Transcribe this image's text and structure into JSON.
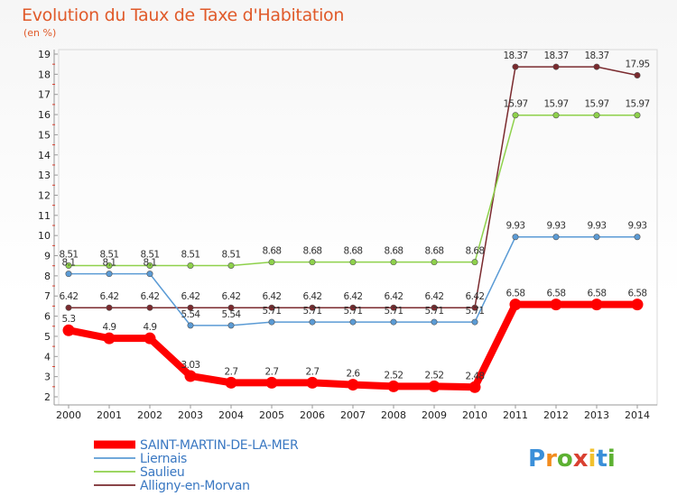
{
  "header": {
    "title": "Evolution du Taux de Taxe d'Habitation",
    "subtitle": "(en %)"
  },
  "logo": {
    "text": "Proxiti",
    "letters": [
      "P",
      "r",
      "o",
      "x",
      "i",
      "t",
      "i"
    ],
    "colors": [
      "#3a8fd9",
      "#f28c1e",
      "#5db132",
      "#d94030",
      "#f2c12e",
      "#3a8fd9",
      "#5db132"
    ]
  },
  "chart_data": {
    "type": "line",
    "title": "Evolution du Taux de Taxe d'Habitation",
    "ylabel": "(en %)",
    "x": [
      "2000",
      "2001",
      "2002",
      "2003",
      "2004",
      "2005",
      "2006",
      "2007",
      "2008",
      "2009",
      "2010",
      "2011",
      "2012",
      "2013",
      "2014"
    ],
    "ylim": [
      2,
      19
    ],
    "yticks": [
      2,
      3,
      4,
      5,
      6,
      7,
      8,
      9,
      10,
      11,
      12,
      13,
      14,
      15,
      16,
      17,
      18,
      19
    ],
    "grid": false,
    "legend_position": "bottom-left",
    "series": [
      {
        "name": "SAINT-MARTIN-DE-LA-MER",
        "color": "#ff0000",
        "values": [
          5.3,
          4.9,
          4.9,
          3.03,
          2.7,
          2.7,
          2.7,
          2.6,
          2.52,
          2.52,
          2.48,
          6.58,
          6.58,
          6.58,
          6.58
        ],
        "labels": [
          "5.3",
          "4.9",
          "4.9",
          "3.03",
          "2.7",
          "2.7",
          "2.7",
          "2.6",
          "2.52",
          "2.52",
          "2.48",
          "6.58",
          "6.58",
          "6.58",
          "6.58"
        ]
      },
      {
        "name": "Liernais",
        "color": "#5b9bd5",
        "values": [
          8.1,
          8.1,
          8.1,
          5.54,
          5.54,
          5.71,
          5.71,
          5.71,
          5.71,
          5.71,
          5.71,
          9.93,
          9.93,
          9.93,
          9.93
        ],
        "labels": [
          "8.1",
          "8.1",
          "8.1",
          "5.54",
          "5.54",
          "5.71",
          "5.71",
          "5.71",
          "5.71",
          "5.71",
          "5.71",
          "9.93",
          "9.93",
          "9.93",
          "9.93"
        ]
      },
      {
        "name": "Saulieu",
        "color": "#8ed14b",
        "values": [
          8.51,
          8.51,
          8.51,
          8.51,
          8.51,
          8.68,
          8.68,
          8.68,
          8.68,
          8.68,
          8.68,
          15.97,
          15.97,
          15.97,
          15.97
        ],
        "labels": [
          "8.51",
          "8.51",
          "8.51",
          "8.51",
          "8.51",
          "8.68",
          "8.68",
          "8.68",
          "8.68",
          "8.68",
          "8.68",
          "15.97",
          "15.97",
          "15.97",
          "15.97"
        ]
      },
      {
        "name": "Alligny-en-Morvan",
        "color": "#7a2a2e",
        "values": [
          6.42,
          6.42,
          6.42,
          6.42,
          6.42,
          6.42,
          6.42,
          6.42,
          6.42,
          6.42,
          6.42,
          18.37,
          18.37,
          18.37,
          17.95
        ],
        "labels": [
          "6.42",
          "6.42",
          "6.42",
          "6.42",
          "6.42",
          "6.42",
          "6.42",
          "6.42",
          "6.42",
          "6.42",
          "6.42",
          "18.37",
          "18.37",
          "18.37",
          "17.95"
        ]
      }
    ]
  }
}
